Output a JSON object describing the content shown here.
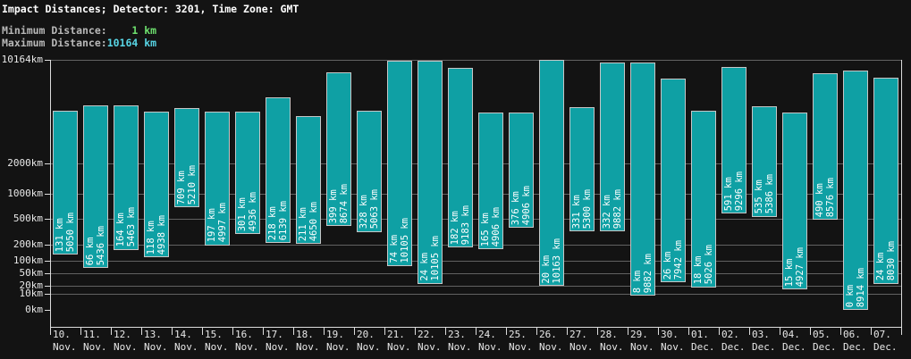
{
  "header": {
    "title": "Impact Distances; Detector: 3201, Time Zone: GMT",
    "min_label": "Minimum Distance:",
    "min_value_text": "    1 km",
    "min_km": 1,
    "max_label": "Maximum Distance:",
    "max_value_text": "10164 km",
    "max_km": 10164
  },
  "colors": {
    "background": "#131313",
    "title_text": "#ffffff",
    "stat_label_text": "#b8b8b8",
    "min_value_green": "#6ee06e",
    "max_value_cyan": "#58d5e5",
    "grid": "#626262",
    "axis": "#dcdcdc",
    "tick_text": "#e8e8e8",
    "bar_fill": "#0fa0a4",
    "bar_border": "#c6c6c6",
    "bar_label_text": "#ffffff"
  },
  "chart_data": {
    "type": "bar",
    "subtype": "floating_range_bars",
    "title": "Impact Distances; Detector: 3201, Time Zone: GMT",
    "unit": "km",
    "grid": true,
    "legend": false,
    "bar_label_format": "{value} km",
    "y_axis": {
      "min": 0,
      "max": 10164,
      "scale": "power",
      "scale_exponent": 0.301,
      "tick_values": [
        10164,
        2000,
        1000,
        500,
        200,
        100,
        50,
        20,
        10,
        0
      ],
      "tick_labels": [
        "10164km",
        "2000km",
        "1000km",
        "500km",
        "200km",
        "100km",
        "50km",
        "20km",
        "10km",
        "0km"
      ]
    },
    "categories": [
      {
        "day": "10.",
        "month": "Nov."
      },
      {
        "day": "11.",
        "month": "Nov."
      },
      {
        "day": "12.",
        "month": "Nov."
      },
      {
        "day": "13.",
        "month": "Nov."
      },
      {
        "day": "14.",
        "month": "Nov."
      },
      {
        "day": "15.",
        "month": "Nov."
      },
      {
        "day": "16.",
        "month": "Nov."
      },
      {
        "day": "17.",
        "month": "Nov."
      },
      {
        "day": "18.",
        "month": "Nov."
      },
      {
        "day": "19.",
        "month": "Nov."
      },
      {
        "day": "20.",
        "month": "Nov."
      },
      {
        "day": "21.",
        "month": "Nov."
      },
      {
        "day": "22.",
        "month": "Nov."
      },
      {
        "day": "23.",
        "month": "Nov."
      },
      {
        "day": "24.",
        "month": "Nov."
      },
      {
        "day": "25.",
        "month": "Nov."
      },
      {
        "day": "26.",
        "month": "Nov."
      },
      {
        "day": "27.",
        "month": "Nov."
      },
      {
        "day": "28.",
        "month": "Nov."
      },
      {
        "day": "29.",
        "month": "Nov."
      },
      {
        "day": "30.",
        "month": "Nov."
      },
      {
        "day": "01.",
        "month": "Dec."
      },
      {
        "day": "02.",
        "month": "Dec."
      },
      {
        "day": "03.",
        "month": "Dec."
      },
      {
        "day": "04.",
        "month": "Dec."
      },
      {
        "day": "05.",
        "month": "Dec."
      },
      {
        "day": "06.",
        "month": "Dec."
      },
      {
        "day": "07.",
        "month": "Dec."
      }
    ],
    "series": [
      {
        "name": "minimum_distance_km",
        "values": [
          131,
          66,
          164,
          118,
          709,
          197,
          301,
          218,
          211,
          399,
          328,
          74,
          24,
          182,
          165,
          376,
          20,
          331,
          332,
          8,
          26,
          18,
          591,
          535,
          15,
          490,
          0,
          24
        ]
      },
      {
        "name": "maximum_distance_km",
        "values": [
          5050,
          5436,
          5463,
          4938,
          5210,
          4997,
          4936,
          6139,
          4650,
          8674,
          5063,
          10105,
          10105,
          9183,
          4906,
          4906,
          10163,
          5300,
          9882,
          9882,
          7942,
          5026,
          9296,
          5386,
          4927,
          8576,
          8914,
          8030
        ]
      }
    ]
  }
}
